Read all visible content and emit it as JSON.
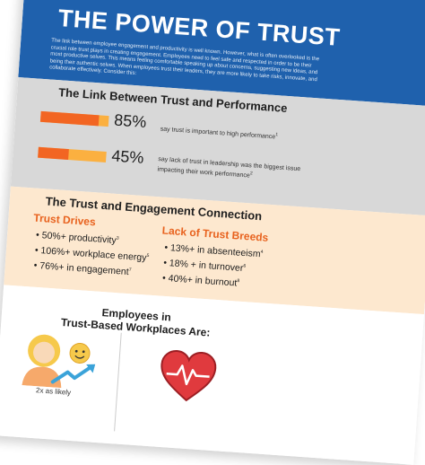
{
  "title": "THE POWER OF TRUST",
  "intro": "The link between employee engagement and productivity is well known. However, what is often overlooked is the crucial role trust plays in creating engagement. Employees need to feel safe and respected in order to be their most productive selves. This means feeling comfortable speaking up about concerns, suggesting new ideas, and being their authentic selves. When employees trust their leaders, they are more likely to take risks, innovate, and collaborate effectively. Consider this:",
  "link_section": {
    "heading": "The Link Between Trust and Performance",
    "stats": [
      {
        "percent": "85%",
        "fraction": 0.85,
        "text": "say trust is important to high performance",
        "ref": "1"
      },
      {
        "percent": "45%",
        "fraction": 0.45,
        "text": "say lack of trust in leadership was the biggest issue impacting their work performance",
        "ref": "2"
      }
    ]
  },
  "engagement_section": {
    "heading": "The Trust and Engagement Connection",
    "drives": {
      "heading": "Trust Drives",
      "items": [
        {
          "text": "50%+ productivity",
          "ref": "3"
        },
        {
          "text": "106%+ workplace energy",
          "ref": "5"
        },
        {
          "text": "76%+ in engagement",
          "ref": "7"
        }
      ]
    },
    "lack": {
      "heading": "Lack of Trust Breeds",
      "items": [
        {
          "text": "13%+ in absenteeism",
          "ref": "4"
        },
        {
          "text": "18% + in turnover",
          "ref": "6"
        },
        {
          "text": "40%+ in burnout",
          "ref": "8"
        }
      ]
    }
  },
  "employees_section": {
    "heading_line1": "Employees in",
    "heading_line2": "Trust-Based Workplaces Are:",
    "likely_text": "2x as likely"
  },
  "colors": {
    "blue": "#1f61ad",
    "grey": "#d8d8d8",
    "peach": "#fde8cf",
    "orange": "#f26522",
    "light_orange": "#fbb040",
    "heart_red": "#e03a3e"
  },
  "icons": [
    "person-growth-icon",
    "smiley-icon",
    "heart-pulse-icon"
  ]
}
